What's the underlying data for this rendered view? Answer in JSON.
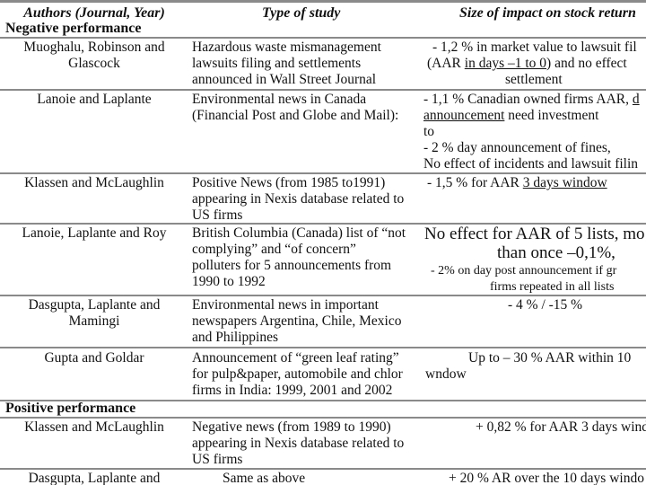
{
  "header": {
    "authors": "Authors (Journal, Year)",
    "type": "Type of study",
    "impact": "Size of impact on stock return"
  },
  "sections": {
    "negative": "Negative performance",
    "positive": "Positive performance"
  },
  "rows": [
    {
      "authors": [
        "Muoghalu, Robinson and",
        "Glascock"
      ],
      "type": [
        "Hazardous waste mismanagement",
        "lawsuits filing and settlements",
        "announced in Wall Street Journal"
      ],
      "impact": {
        "l1": "- 1,2 % in market value to lawsuit fil",
        "l2a": "(AAR ",
        "l2u": "in days –1 to 0",
        "l2b": ") and no effect",
        "l3": "settlement"
      }
    },
    {
      "authors": [
        "Lanoie and Laplante"
      ],
      "type": [
        "Environmental news in Canada",
        "(Financial Post and Globe and Mail):"
      ],
      "impact": {
        "l1a": "- 1,1 % Canadian owned firms AAR, ",
        "l1u": "d",
        "l2u": "announcement",
        "l2b": " need investment",
        "l3": "to",
        "l4": "- 2 % day  announcement of fines,",
        "l5": "No effect of incidents and lawsuit filin"
      }
    },
    {
      "authors": [
        "Klassen and McLaughlin"
      ],
      "type": [
        "Positive News (from 1985 to1991)",
        "appearing in Nexis database related to",
        "US firms"
      ],
      "impact": {
        "l1a": "- 1,5 % for AAR ",
        "l1u": "3 days window"
      }
    },
    {
      "authors": [
        "Lanoie, Laplante and Roy"
      ],
      "type": [
        "British Columbia (Canada) list of “not",
        "complying” and “of concern”",
        "polluters for 5 announcements from",
        "1990 to 1992"
      ],
      "impact": {
        "l1": "No effect for AAR of 5 lists, mo",
        "l2": "than once –0,1%,",
        "l3": "- 2% on day post announcement  if gr",
        "l4": "firms repeated in all lists"
      }
    },
    {
      "authors": [
        "Dasgupta, Laplante and",
        "Mamingi"
      ],
      "type": [
        "Environmental news in important",
        "newspapers Argentina, Chile, Mexico",
        "and Philippines"
      ],
      "impact": {
        "l1": "- 4 % / -15 %"
      }
    },
    {
      "authors": [
        "Gupta and Goldar"
      ],
      "type": [
        "Announcement of “green leaf rating”",
        "for pulp&paper, automobile and chlor",
        "firms in India: 1999, 2001 and 2002"
      ],
      "impact": {
        "l1": "Up to – 30 % AAR within 10",
        "l2": "wndow"
      }
    },
    {
      "authors": [
        "Klassen and McLaughlin"
      ],
      "type": [
        "Negative news (from 1989 to 1990)",
        "appearing in Nexis database related to",
        "US firms"
      ],
      "impact": {
        "l1": "+ 0,82 % for AAR 3 days window"
      }
    },
    {
      "authors": [
        "Dasgupta, Laplante and"
      ],
      "type": [
        "Same as above"
      ],
      "impact": {
        "l1": "+ 20 % AR over the 10 days windo"
      }
    }
  ]
}
